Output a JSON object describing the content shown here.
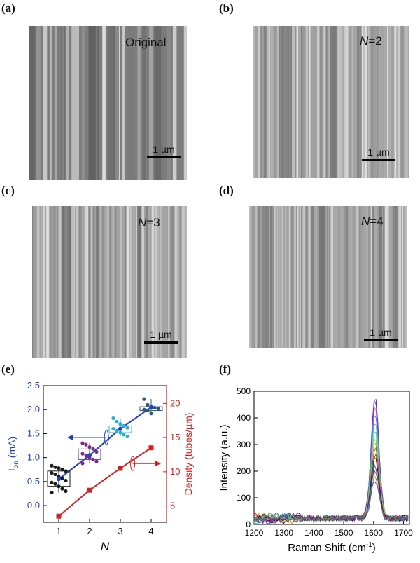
{
  "figure": {
    "panels": [
      {
        "id": "a",
        "tag": "(a)",
        "label_main": "Original",
        "label_italic": "",
        "label_rest": "",
        "scale": "1 µm"
      },
      {
        "id": "b",
        "tag": "(b)",
        "label_main": "",
        "label_italic": "N",
        "label_rest": "=2",
        "scale": "1 µm"
      },
      {
        "id": "c",
        "tag": "(c)",
        "label_main": "",
        "label_italic": "N",
        "label_rest": "=3",
        "scale": "1 µm"
      },
      {
        "id": "d",
        "tag": "(d)",
        "label_main": "",
        "label_italic": "N",
        "label_rest": "=4",
        "scale": "1 µm"
      }
    ],
    "tag_e": "(e)",
    "tag_f": "(f)"
  },
  "chart_data": [
    {
      "type": "scatter",
      "panel": "e",
      "xlabel": "N",
      "ylabel_left": "I",
      "ylabel_left_sub": "on",
      "ylabel_left_unit": " (mA)",
      "ylabel_right": "Density (tubes/µm)",
      "x_ticks": [
        "1",
        "2",
        "3",
        "4"
      ],
      "y_left_ticks": [
        "0.0",
        "0.5",
        "1.0",
        "1.5",
        "2.0",
        "2.5"
      ],
      "y_right_ticks": [
        "5",
        "10",
        "15",
        "20"
      ],
      "xlim": [
        0.5,
        4.5
      ],
      "ylim_left": [
        -0.35,
        2.5
      ],
      "ylim_right": [
        2.6,
        22.6
      ],
      "series": [
        {
          "axis": "left",
          "color": "#1a1a1a",
          "x": 1,
          "points": [
            0.83,
            0.8,
            0.78,
            0.75,
            0.72,
            0.68,
            0.65,
            0.6,
            0.57,
            0.52,
            0.48,
            0.45,
            0.4,
            0.35,
            0.3,
            0.27
          ]
        },
        {
          "axis": "left",
          "color": "#7a2a8a",
          "x": 2,
          "points": [
            1.3,
            1.27,
            1.22,
            1.18,
            1.12,
            1.08,
            1.04,
            1.0,
            0.96,
            0.92,
            0.88
          ]
        },
        {
          "axis": "left",
          "color": "#2ab0c8",
          "x": 3,
          "points": [
            1.82,
            1.75,
            1.7,
            1.66,
            1.62,
            1.6,
            1.56,
            1.52,
            1.48,
            1.44
          ]
        },
        {
          "axis": "left",
          "color": "#2a5a7a",
          "x": 4,
          "points": [
            2.22,
            2.1,
            2.06,
            2.04,
            2.02,
            2.0,
            1.98,
            1.92
          ]
        }
      ],
      "mean_line_left": {
        "color": "#1f3fd0",
        "x": [
          1,
          2,
          3,
          4
        ],
        "y": [
          0.55,
          1.05,
          1.6,
          2.05
        ]
      },
      "density_line_right": {
        "color": "#d42020",
        "x": [
          1,
          2,
          3,
          4
        ],
        "y": [
          3.5,
          7.3,
          10.5,
          13.5
        ]
      }
    },
    {
      "type": "line",
      "panel": "f",
      "xlabel": "Raman Shift (cm",
      "xlabel_sup": "-1",
      "xlabel_end": ")",
      "ylabel": "Intensity (a.u.)",
      "x_ticks": [
        "1200",
        "1300",
        "1400",
        "1500",
        "1600",
        "1700"
      ],
      "y_ticks": [
        "0",
        "100",
        "200",
        "300",
        "400",
        "500"
      ],
      "xlim": [
        1200,
        1720
      ],
      "ylim": [
        0,
        500
      ],
      "peak_center": 1605,
      "peak_heights": [
        465,
        445,
        420,
        390,
        360,
        330,
        300,
        285,
        265,
        240,
        220,
        200,
        180,
        160,
        140
      ],
      "colors": [
        "#1f1fd0",
        "#6a2ad0",
        "#d02ad0",
        "#2a8ad0",
        "#2ad0c0",
        "#2ad06a",
        "#8ad02a",
        "#d0a02a",
        "#d02a2a",
        "#7a4a2a",
        "#1a1a1a",
        "#2a2aa0",
        "#a02a6a",
        "#4aa04a",
        "#5050c0"
      ]
    }
  ]
}
